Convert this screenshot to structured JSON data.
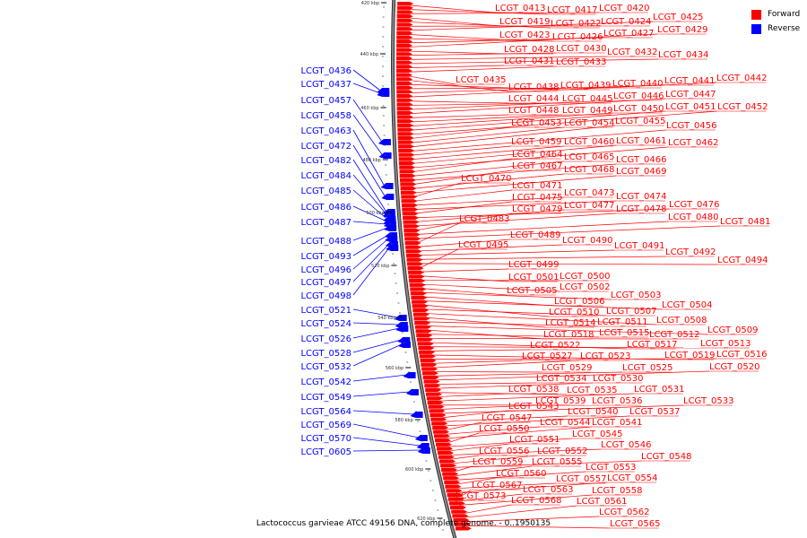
{
  "caption": "Lactococcus garvieae ATCC 49156 DNA, complete genome. - 0..1950135",
  "legend": [
    {
      "label": "Forward",
      "color": "#ff0000"
    },
    {
      "label": "Reverse",
      "color": "#0000ff"
    }
  ],
  "colors": {
    "forward": "#ff0000",
    "reverse": "#0000ff",
    "backbone": "#888888"
  },
  "ticks": [
    "420 kbp",
    "440 kbp",
    "460 kbp",
    "480 kbp",
    "500 kbp",
    "520 kbp",
    "540 kbp",
    "560 kbp",
    "580 kbp",
    "600 kbp",
    "620 kbp"
  ],
  "reverse_genes": [
    "LCGT_0436",
    "LCGT_0437",
    "LCGT_0457",
    "LCGT_0458",
    "LCGT_0463",
    "LCGT_0472",
    "LCGT_0482",
    "LCGT_0484",
    "LCGT_0485",
    "LCGT_0486",
    "LCGT_0487",
    "LCGT_0488",
    "LCGT_0493",
    "LCGT_0496",
    "LCGT_0497",
    "LCGT_0498",
    "LCGT_0521",
    "LCGT_0524",
    "LCGT_0526",
    "LCGT_0528",
    "LCGT_0532",
    "LCGT_0542",
    "LCGT_0549",
    "LCGT_0564",
    "LCGT_0569",
    "LCGT_0570",
    "LCGT_0605"
  ],
  "forward_genes": [
    "LCGT_0413",
    "LCGT_0417",
    "LCGT_0420",
    "LCGT_0419",
    "LCGT_0422",
    "LCGT_0424",
    "LCGT_0425",
    "LCGT_0423",
    "LCGT_0426",
    "LCGT_0427",
    "LCGT_0429",
    "LCGT_0428",
    "LCGT_0430",
    "LCGT_0432",
    "LCGT_0434",
    "LCGT_0431",
    "LCGT_0433",
    "LCGT_0435",
    "LCGT_0438",
    "LCGT_0439",
    "LCGT_0440",
    "LCGT_0441",
    "LCGT_0442",
    "LCGT_0444",
    "LCGT_0445",
    "LCGT_0446",
    "LCGT_0447",
    "LCGT_0448",
    "LCGT_0449",
    "LCGT_0450",
    "LCGT_0451",
    "LCGT_0452",
    "LCGT_0453",
    "LCGT_0454",
    "LCGT_0455",
    "LCGT_0456",
    "LCGT_0459",
    "LCGT_0460",
    "LCGT_0461",
    "LCGT_0462",
    "LCGT_0464",
    "LCGT_0465",
    "LCGT_0466",
    "LCGT_0467",
    "LCGT_0468",
    "LCGT_0469",
    "LCGT_0470",
    "LCGT_0471",
    "LCGT_0473",
    "LCGT_0474",
    "LCGT_0475",
    "LCGT_0476",
    "LCGT_0477",
    "LCGT_0478",
    "LCGT_0479",
    "LCGT_0480",
    "LCGT_0481",
    "LCGT_0483",
    "LCGT_0489",
    "LCGT_0490",
    "LCGT_0491",
    "LCGT_0492",
    "LCGT_0494",
    "LCGT_0495",
    "LCGT_0499",
    "LCGT_0501",
    "LCGT_0500",
    "LCGT_0502",
    "LCGT_0505",
    "LCGT_0503",
    "LCGT_0506",
    "LCGT_0504",
    "LCGT_0510",
    "LCGT_0507",
    "LCGT_0508",
    "LCGT_0514",
    "LCGT_0511",
    "LCGT_0509",
    "LCGT_0518",
    "LCGT_0515",
    "LCGT_0512",
    "LCGT_0517",
    "LCGT_0513",
    "LCGT_0522",
    "LCGT_0519",
    "LCGT_0516",
    "LCGT_0527",
    "LCGT_0523",
    "LCGT_0529",
    "LCGT_0525",
    "LCGT_0520",
    "LCGT_0534",
    "LCGT_0530",
    "LCGT_0535",
    "LCGT_0538",
    "LCGT_0531",
    "LCGT_0536",
    "LCGT_0539",
    "LCGT_0533",
    "LCGT_0543",
    "LCGT_0540",
    "LCGT_0537",
    "LCGT_0547",
    "LCGT_0544",
    "LCGT_0541",
    "LCGT_0550",
    "LCGT_0545",
    "LCGT_0551",
    "LCGT_0546",
    "LCGT_0556",
    "LCGT_0552",
    "LCGT_0548",
    "LCGT_0559",
    "LCGT_0555",
    "LCGT_0553",
    "LCGT_0560",
    "LCGT_0557",
    "LCGT_0554",
    "LCGT_0567",
    "LCGT_0563",
    "LCGT_0558",
    "LCGT_0573",
    "LCGT_0568",
    "LCGT_0561",
    "LCGT_0562",
    "LCGT_0565"
  ]
}
